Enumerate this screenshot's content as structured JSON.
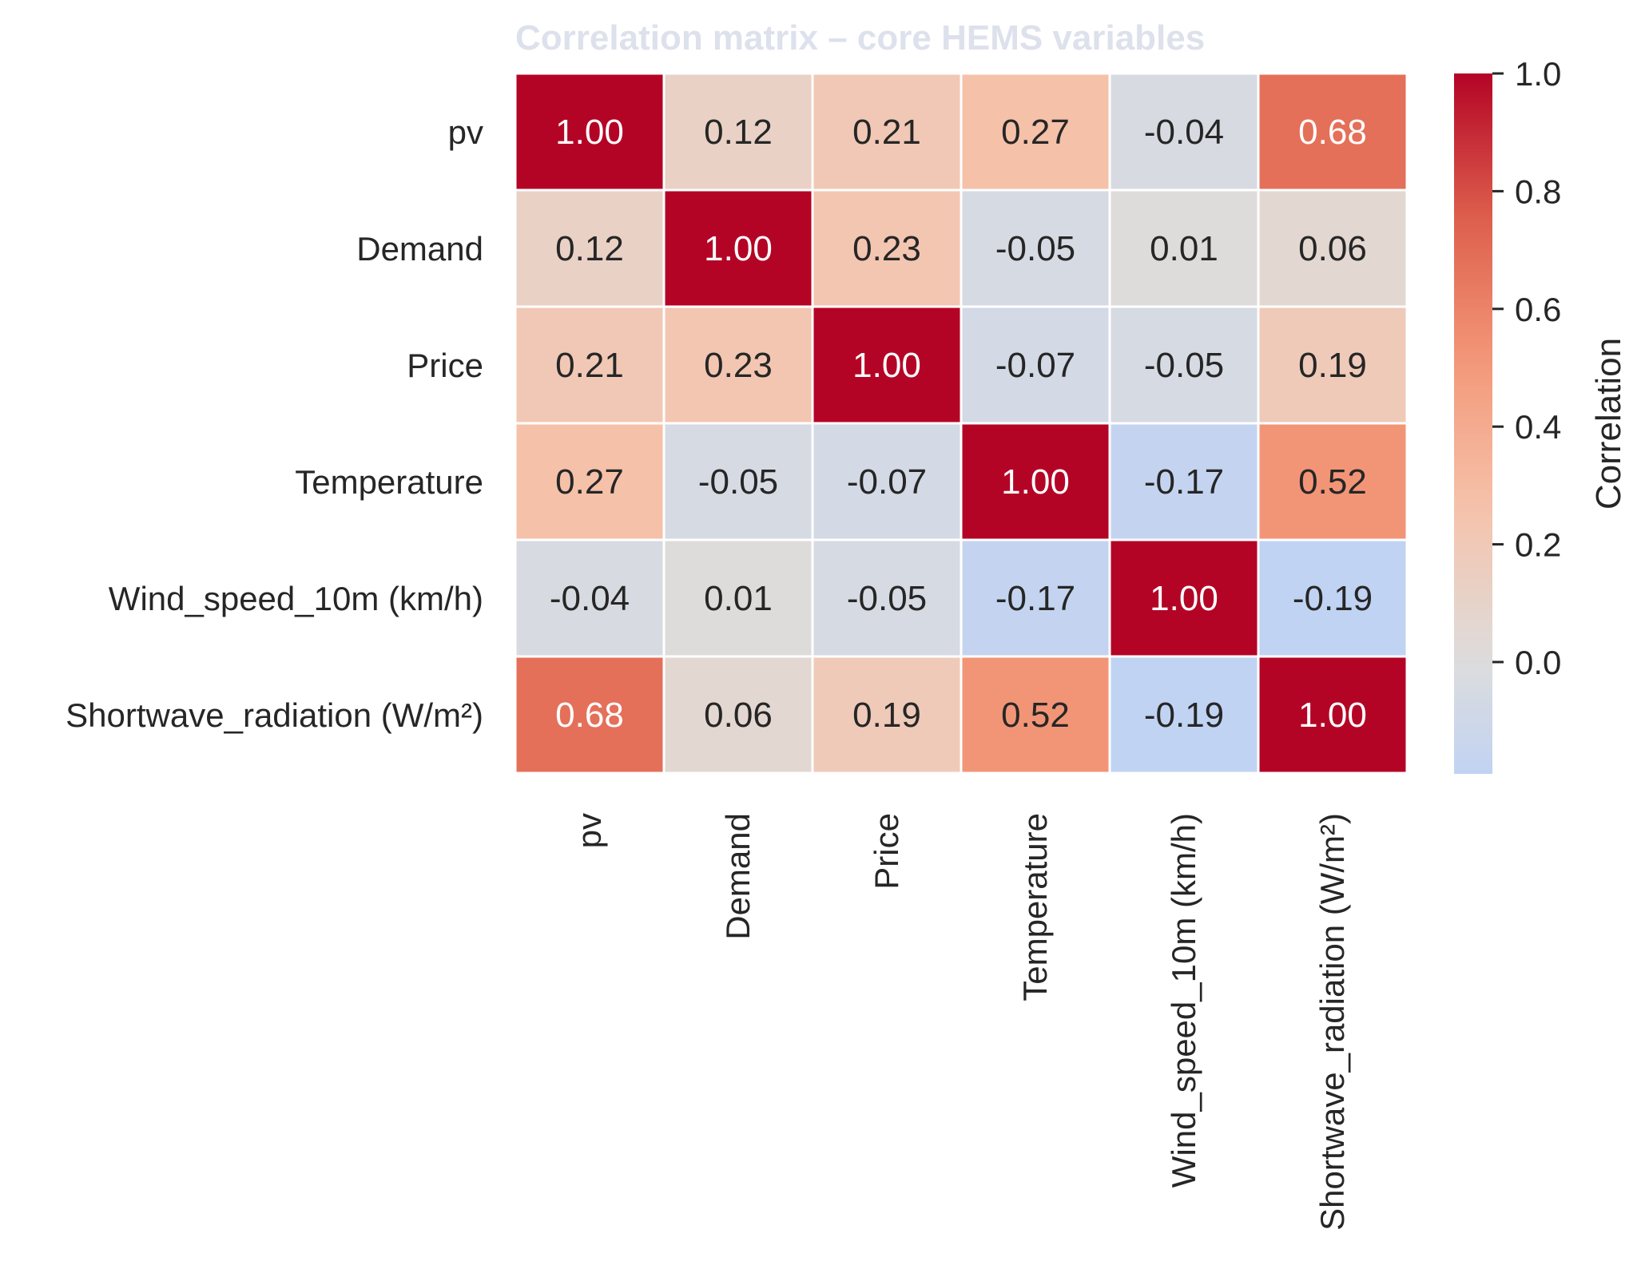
{
  "chart_data": {
    "type": "heatmap",
    "title": "Correlation matrix – core HEMS variables",
    "row_labels": [
      "pv",
      "Demand",
      "Price",
      "Temperature",
      "Wind_speed_10m (km/h)",
      "Shortwave_radiation (W/m²)"
    ],
    "col_labels": [
      "pv",
      "Demand",
      "Price",
      "Temperature",
      "Wind_speed_10m (km/h)",
      "Shortwave_radiation (W/m²)"
    ],
    "values": [
      [
        1.0,
        0.12,
        0.21,
        0.27,
        -0.04,
        0.68
      ],
      [
        0.12,
        1.0,
        0.23,
        -0.05,
        0.01,
        0.06
      ],
      [
        0.21,
        0.23,
        1.0,
        -0.07,
        -0.05,
        0.19
      ],
      [
        0.27,
        -0.05,
        -0.07,
        1.0,
        -0.17,
        0.52
      ],
      [
        -0.04,
        0.01,
        -0.05,
        -0.17,
        1.0,
        -0.19
      ],
      [
        0.68,
        0.06,
        0.19,
        0.52,
        -0.19,
        1.0
      ]
    ],
    "value_format": "0.00",
    "colormap": "coolwarm",
    "center": 0,
    "color_range": [
      -0.19,
      1.0
    ],
    "colorbar": {
      "label": "Correlation",
      "ticks": [
        0.0,
        0.2,
        0.4,
        0.6,
        0.8,
        1.0
      ],
      "tick_labels": [
        "0.0",
        "0.2",
        "0.4",
        "0.6",
        "0.8",
        "1.0"
      ]
    },
    "colors": {
      "title": "#dde1ec",
      "text_dark": "#262626",
      "text_light": "#ffffff",
      "grid_lines": "#ffffff"
    }
  }
}
